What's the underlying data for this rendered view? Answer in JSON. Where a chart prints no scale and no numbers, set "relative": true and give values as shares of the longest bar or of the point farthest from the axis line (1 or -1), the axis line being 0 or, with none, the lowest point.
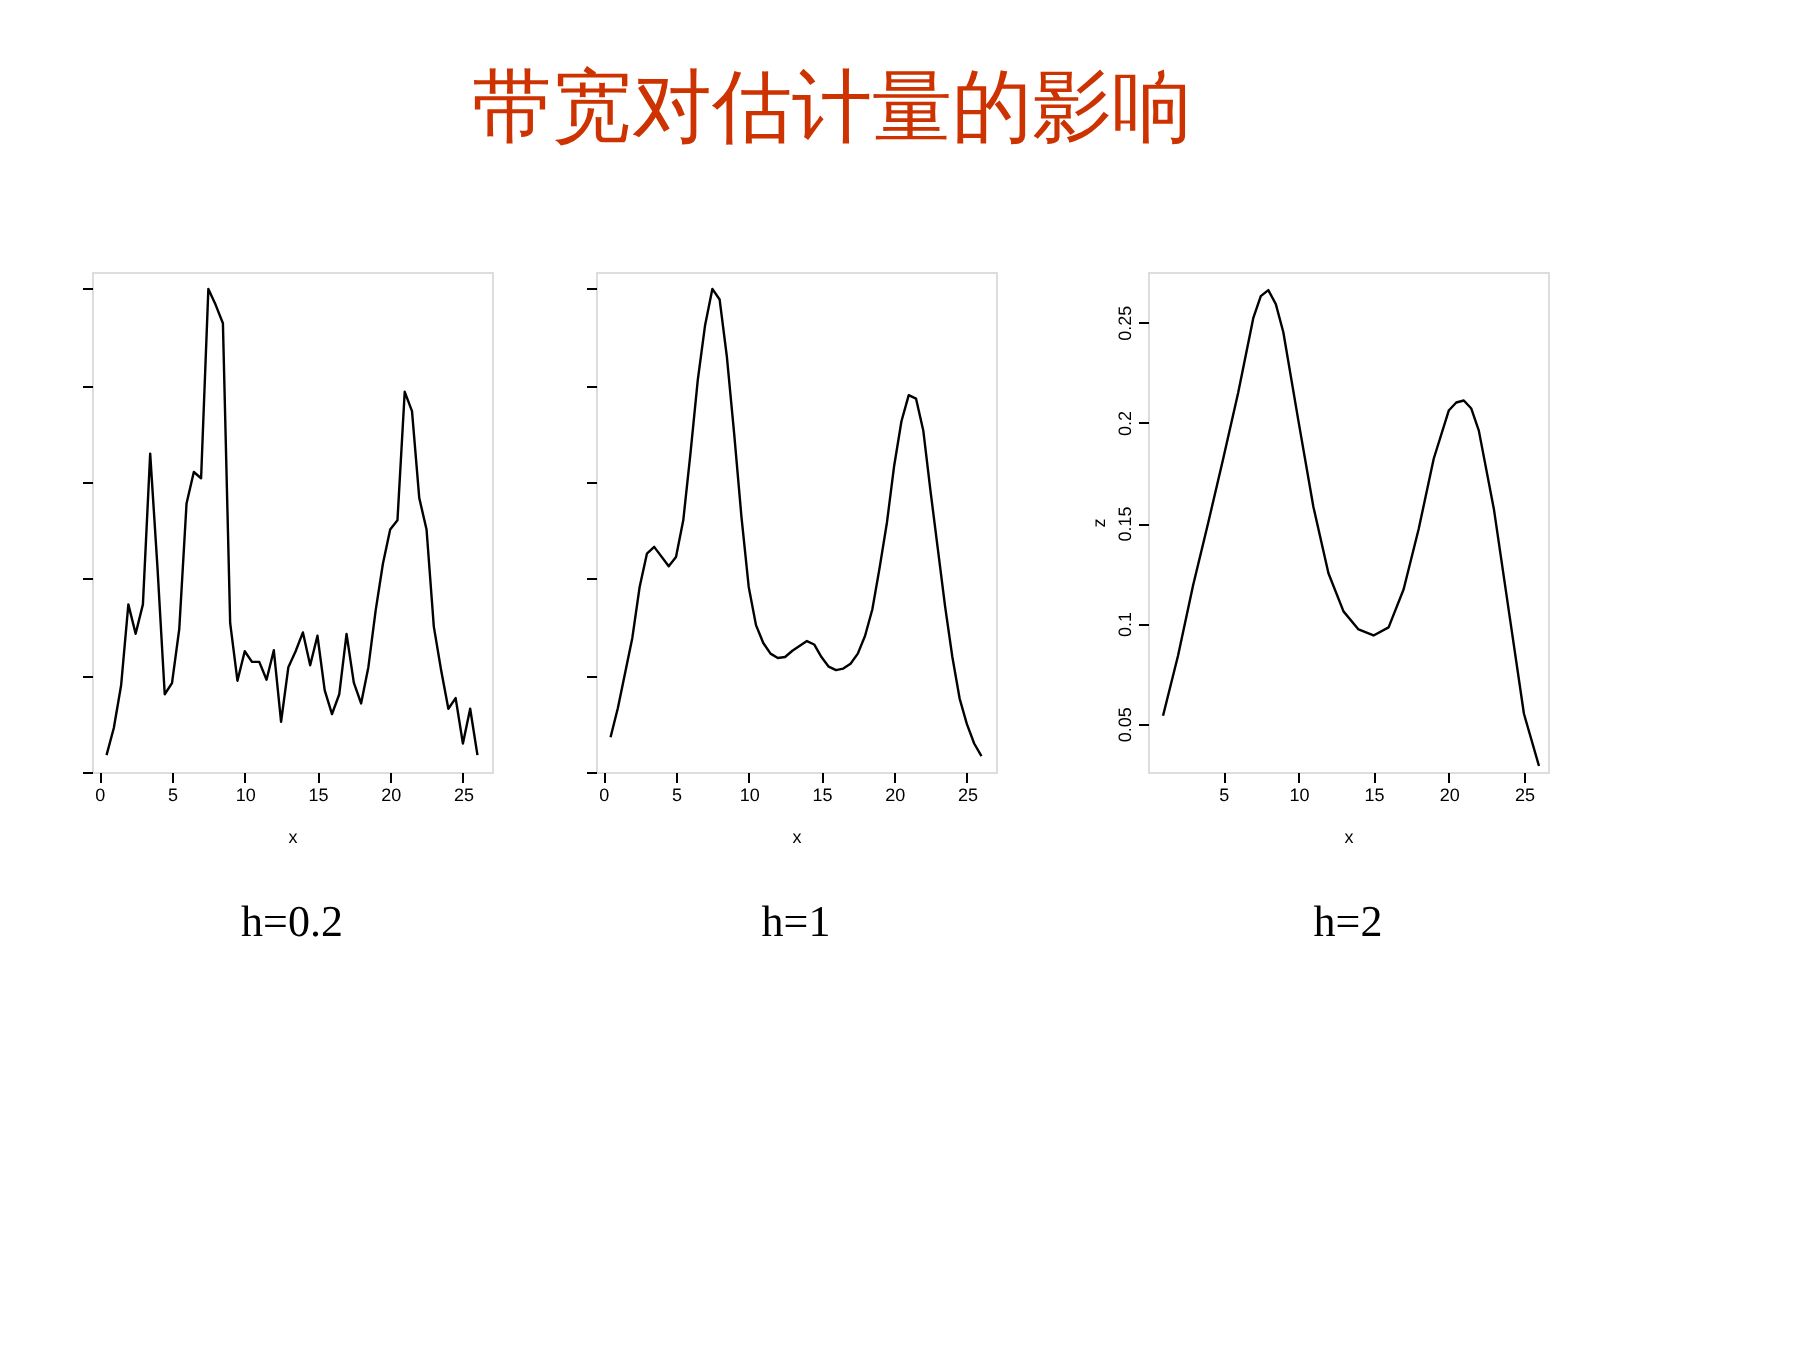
{
  "chart_data": [
    {
      "type": "other",
      "title": "带宽对估计量的影响"
    },
    {
      "type": "line",
      "xlabel": "x",
      "annotations": [
        "h=0.2"
      ],
      "relative": true,
      "tick_labels": "x",
      "xlim": [
        -0.5,
        27
      ],
      "xticks": [
        0,
        5,
        10,
        15,
        20,
        25
      ],
      "grid": false,
      "marker": "none",
      "line_style": "solid",
      "x": [
        0.5,
        1,
        1.5,
        2,
        2.5,
        3,
        3.5,
        4,
        4.5,
        5,
        5.5,
        6,
        6.5,
        7,
        7.5,
        8,
        8.5,
        9,
        9.5,
        10,
        10.5,
        11,
        11.5,
        12,
        12.5,
        13,
        13.5,
        14,
        14.5,
        15,
        15.5,
        16,
        16.5,
        17,
        17.5,
        18,
        18.5,
        19,
        19.5,
        20,
        20.5,
        21,
        21.5,
        22,
        22.5,
        23,
        23.5,
        24,
        24.5,
        25,
        25.5,
        26
      ],
      "series": [
        {
          "color": "#000000",
          "values": [
            0.035,
            0.091,
            0.179,
            0.347,
            0.286,
            0.347,
            0.659,
            0.424,
            0.161,
            0.184,
            0.296,
            0.556,
            0.621,
            0.608,
            1,
            0.967,
            0.929,
            0.308,
            0.189,
            0.25,
            0.228,
            0.228,
            0.191,
            0.252,
            0.104,
            0.217,
            0.25,
            0.289,
            0.221,
            0.282,
            0.169,
            0.12,
            0.161,
            0.286,
            0.185,
            0.142,
            0.217,
            0.334,
            0.431,
            0.502,
            0.521,
            0.787,
            0.747,
            0.567,
            0.502,
            0.301,
            0.211,
            0.131,
            0.153,
            0.059,
            0.131,
            0.035
          ]
        }
      ]
    },
    {
      "type": "line",
      "xlabel": "x",
      "annotations": [
        "h=1"
      ],
      "relative": true,
      "tick_labels": "x",
      "xlim": [
        -0.5,
        27
      ],
      "xticks": [
        0,
        5,
        10,
        15,
        20,
        25
      ],
      "grid": false,
      "marker": "none",
      "line_style": "solid",
      "x": [
        0.5,
        1,
        2,
        2.5,
        3,
        3.5,
        4.5,
        5,
        5.5,
        6,
        6.5,
        7,
        7.5,
        8,
        8.5,
        9,
        9.5,
        10,
        10.5,
        11,
        11.5,
        12,
        12.5,
        13,
        14,
        14.5,
        15,
        15.5,
        16,
        16.5,
        17,
        17.5,
        18,
        18.5,
        19,
        19.5,
        20,
        20.5,
        21,
        21.5,
        22,
        22.5,
        23,
        23.5,
        24,
        24.5,
        25,
        25.5,
        26
      ],
      "series": [
        {
          "color": "#000000",
          "values": [
            0.072,
            0.132,
            0.278,
            0.383,
            0.452,
            0.466,
            0.426,
            0.445,
            0.521,
            0.661,
            0.812,
            0.925,
            1,
            0.978,
            0.859,
            0.7,
            0.528,
            0.383,
            0.304,
            0.267,
            0.245,
            0.236,
            0.238,
            0.251,
            0.271,
            0.264,
            0.238,
            0.218,
            0.211,
            0.214,
            0.224,
            0.245,
            0.282,
            0.337,
            0.423,
            0.516,
            0.634,
            0.726,
            0.78,
            0.773,
            0.707,
            0.581,
            0.462,
            0.343,
            0.238,
            0.152,
            0.099,
            0.059,
            0.033
          ]
        }
      ]
    },
    {
      "type": "line",
      "xlabel": "x",
      "ylabel": "z",
      "annotations": [
        "h=2"
      ],
      "xlim": [
        0,
        26.6
      ],
      "xticks": [
        5,
        10,
        15,
        20,
        25
      ],
      "ylim": [
        0.026,
        0.275
      ],
      "yticks": [
        0.05,
        0.1,
        0.15,
        0.2,
        0.25
      ],
      "grid": false,
      "marker": "none",
      "line_style": "solid",
      "x": [
        1,
        2,
        3,
        4,
        5,
        6,
        7,
        7.5,
        8,
        8.5,
        9,
        10,
        11,
        12,
        13,
        14,
        15,
        16,
        17,
        18,
        19,
        20,
        20.5,
        21,
        21.5,
        22,
        23,
        24,
        25,
        26
      ],
      "series": [
        {
          "color": "#000000",
          "values": [
            0.054,
            0.084,
            0.119,
            0.15,
            0.182,
            0.215,
            0.252,
            0.263,
            0.266,
            0.259,
            0.245,
            0.201,
            0.158,
            0.125,
            0.106,
            0.097,
            0.094,
            0.098,
            0.117,
            0.147,
            0.182,
            0.206,
            0.21,
            0.211,
            0.207,
            0.196,
            0.157,
            0.106,
            0.055,
            0.029
          ]
        }
      ]
    }
  ]
}
